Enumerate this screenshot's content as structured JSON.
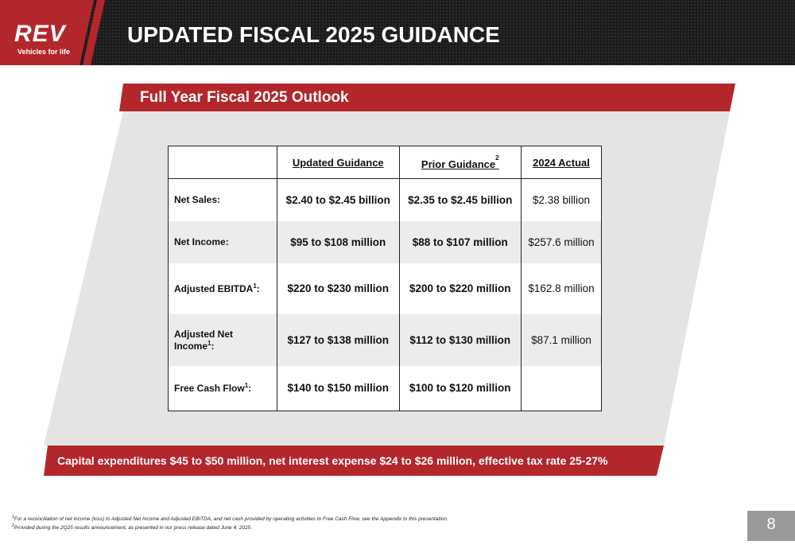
{
  "logo": {
    "name": "REV",
    "tagline": "Vehicles for life"
  },
  "header": {
    "title": "UPDATED FISCAL 2025 GUIDANCE"
  },
  "section": {
    "title": "Full Year Fiscal 2025 Outlook"
  },
  "table": {
    "columns": [
      {
        "text": "Updated Guidance"
      },
      {
        "text": "Prior Guidance",
        "sup": "2"
      },
      {
        "text": "2024 Actual"
      }
    ],
    "rows": [
      {
        "label": "Net Sales:",
        "cells": [
          "$2.40 to $2.45 billion",
          "$2.35 to $2.45 billion",
          "$2.38 billion"
        ]
      },
      {
        "label": "Net Income",
        "suffix": ":",
        "cells": [
          "$95 to $108 million",
          "$88 to $107 million",
          "$257.6 million"
        ]
      },
      {
        "label": "Adjusted EBITDA",
        "sup": "1",
        "suffix": ":",
        "cells": [
          "$220 to $230 million",
          "$200 to $220 million",
          "$162.8 million"
        ]
      },
      {
        "label": "Adjusted Net Income",
        "sup": "1",
        "suffix": ":",
        "cells": [
          "$127 to $138 million",
          "$112 to $130 million",
          "$87.1 million"
        ]
      },
      {
        "label": "Free Cash Flow",
        "sup": "1",
        "suffix": ":",
        "cells": [
          "$140 to $150 million",
          "$100 to $120 million"
        ]
      }
    ]
  },
  "banner": "Capital expenditures $45 to $50 million, net interest expense $24 to $26 million, effective tax rate 25-27%",
  "footnotes": [
    {
      "mark": "1",
      "text": "For a reconciliation of net income (loss) to Adjusted Net Income and Adjusted EBITDA, and net cash provided by operating activities to Free Cash Flow, see the Appendix to this presentation."
    },
    {
      "mark": "2",
      "text": "Provided during the 2Q25 results announcement, as presented in our press release dated June 4, 2025."
    }
  ],
  "page_number": "8"
}
